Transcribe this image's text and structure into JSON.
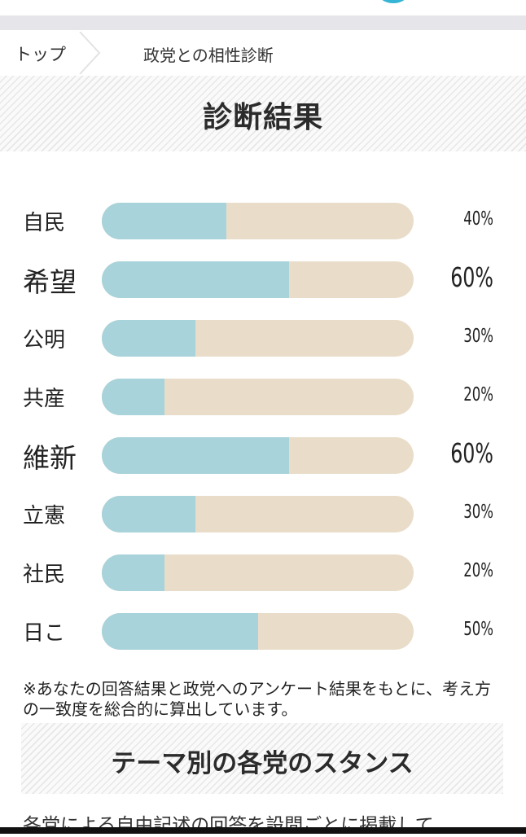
{
  "breadcrumb": {
    "home": "トップ",
    "current": "政党との相性診断"
  },
  "result": {
    "title": "診断結果",
    "rows": [
      {
        "party": "自民",
        "percent_label": "40%",
        "value": 40,
        "highlight": false
      },
      {
        "party": "希望",
        "percent_label": "60%",
        "value": 60,
        "highlight": true
      },
      {
        "party": "公明",
        "percent_label": "30%",
        "value": 30,
        "highlight": false
      },
      {
        "party": "共産",
        "percent_label": "20%",
        "value": 20,
        "highlight": false
      },
      {
        "party": "維新",
        "percent_label": "60%",
        "value": 60,
        "highlight": true
      },
      {
        "party": "立憲",
        "percent_label": "30%",
        "value": 30,
        "highlight": false
      },
      {
        "party": "社民",
        "percent_label": "20%",
        "value": 20,
        "highlight": false
      },
      {
        "party": "日こ",
        "percent_label": "50%",
        "value": 50,
        "highlight": false
      }
    ],
    "note": "※あなたの回答結果と政党へのアンケート結果をもとに、考え方の一致度を総合的に算出しています。"
  },
  "theme": {
    "title": "テーマ別の各党のスタンス",
    "intro_partial": "各党による自由記述の回答を設問ごとに掲載して"
  },
  "colors": {
    "bar_fill": "#a8d3da",
    "bar_track": "#e9ddca",
    "accent_circle": "#35b5d6"
  }
}
